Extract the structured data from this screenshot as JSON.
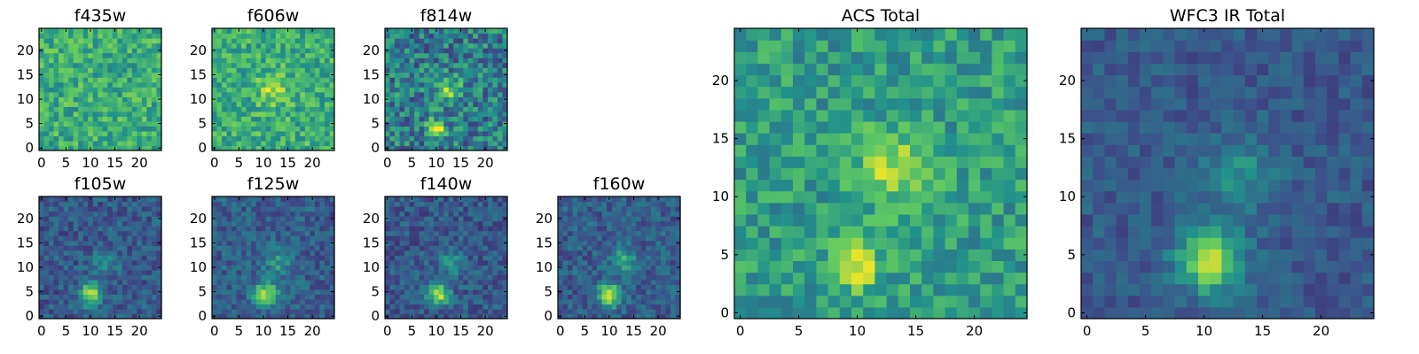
{
  "chart_data": {
    "type": "heatmap",
    "image_size": 25,
    "colormap": [
      "#440154",
      "#3b528b",
      "#21918c",
      "#5ec962",
      "#fde725"
    ],
    "panels": [
      {
        "id": "f435w",
        "title": "f435w",
        "xticks": [
          0,
          5,
          10,
          15,
          20
        ],
        "yticks": [
          0,
          5,
          10,
          15,
          20
        ],
        "xlim": [
          0,
          24
        ],
        "ylim": [
          0,
          24
        ],
        "sources": [],
        "noise": 0.1,
        "base": 0.62,
        "seed": 11
      },
      {
        "id": "f606w",
        "title": "f606w",
        "xticks": [
          0,
          5,
          10,
          15,
          20
        ],
        "yticks": [
          0,
          5,
          10,
          15,
          20
        ],
        "xlim": [
          0,
          24
        ],
        "ylim": [
          0,
          24
        ],
        "sources": [
          {
            "x": 12,
            "y": 12,
            "amp": 0.25,
            "sigma": 2.2
          }
        ],
        "noise": 0.1,
        "base": 0.62,
        "seed": 23
      },
      {
        "id": "f814w",
        "title": "f814w",
        "xticks": [
          0,
          5,
          10,
          15,
          20
        ],
        "yticks": [
          0,
          5,
          10,
          15,
          20
        ],
        "xlim": [
          0,
          24
        ],
        "ylim": [
          0,
          24
        ],
        "sources": [
          {
            "x": 12.5,
            "y": 12,
            "amp": 0.35,
            "sigma": 1.8
          },
          {
            "x": 10,
            "y": 4,
            "amp": 0.55,
            "sigma": 1.3
          }
        ],
        "noise": 0.13,
        "base": 0.42,
        "seed": 37
      },
      {
        "id": "f105w",
        "title": "f105w",
        "xticks": [
          0,
          5,
          10,
          15,
          20
        ],
        "yticks": [
          0,
          5,
          10,
          15,
          20
        ],
        "xlim": [
          0,
          24
        ],
        "ylim": [
          0,
          24
        ],
        "sources": [
          {
            "x": 10,
            "y": 4.5,
            "amp": 0.6,
            "sigma": 1.6
          },
          {
            "x": 13,
            "y": 11,
            "amp": 0.18,
            "sigma": 2.0
          }
        ],
        "noise": 0.07,
        "base": 0.28,
        "seed": 41
      },
      {
        "id": "f125w",
        "title": "f125w",
        "xticks": [
          0,
          5,
          10,
          15,
          20
        ],
        "yticks": [
          0,
          5,
          10,
          15,
          20
        ],
        "xlim": [
          0,
          24
        ],
        "ylim": [
          0,
          24
        ],
        "sources": [
          {
            "x": 10.5,
            "y": 4.5,
            "amp": 0.6,
            "sigma": 1.7
          },
          {
            "x": 13,
            "y": 11,
            "amp": 0.22,
            "sigma": 2.0
          }
        ],
        "noise": 0.07,
        "base": 0.3,
        "seed": 53
      },
      {
        "id": "f140w",
        "title": "f140w",
        "xticks": [
          0,
          5,
          10,
          15,
          20
        ],
        "yticks": [
          0,
          5,
          10,
          15,
          20
        ],
        "xlim": [
          0,
          24
        ],
        "ylim": [
          0,
          24
        ],
        "sources": [
          {
            "x": 10.5,
            "y": 4.5,
            "amp": 0.62,
            "sigma": 1.5
          },
          {
            "x": 13,
            "y": 11,
            "amp": 0.2,
            "sigma": 2.0
          }
        ],
        "noise": 0.07,
        "base": 0.28,
        "seed": 67
      },
      {
        "id": "f160w",
        "title": "f160w",
        "xticks": [
          0,
          5,
          10,
          15,
          20
        ],
        "yticks": [
          0,
          5,
          10,
          15,
          20
        ],
        "xlim": [
          0,
          24
        ],
        "ylim": [
          0,
          24
        ],
        "sources": [
          {
            "x": 10,
            "y": 4.5,
            "amp": 0.62,
            "sigma": 1.6
          },
          {
            "x": 13,
            "y": 11.5,
            "amp": 0.3,
            "sigma": 1.8
          }
        ],
        "noise": 0.07,
        "base": 0.3,
        "seed": 79
      },
      {
        "id": "acs_total",
        "title": "ACS Total",
        "xticks": [
          0,
          5,
          10,
          15,
          20
        ],
        "yticks": [
          0,
          5,
          10,
          15,
          20
        ],
        "xlim": [
          0,
          24
        ],
        "ylim": [
          0,
          24
        ],
        "sources": [
          {
            "x": 13,
            "y": 12.5,
            "amp": 0.32,
            "sigma": 2.2
          },
          {
            "x": 10,
            "y": 4,
            "amp": 0.35,
            "sigma": 1.5
          }
        ],
        "noise": 0.09,
        "base": 0.55,
        "seed": 97
      },
      {
        "id": "wfc3_ir_total",
        "title": "WFC3 IR Total",
        "xticks": [
          0,
          5,
          10,
          15,
          20
        ],
        "yticks": [
          0,
          5,
          10,
          15,
          20
        ],
        "xlim": [
          0,
          24
        ],
        "ylim": [
          0,
          24
        ],
        "sources": [
          {
            "x": 10.5,
            "y": 4.5,
            "amp": 0.62,
            "sigma": 1.9
          },
          {
            "x": 13,
            "y": 12,
            "amp": 0.22,
            "sigma": 2.2
          }
        ],
        "noise": 0.05,
        "base": 0.28,
        "seed": 131
      }
    ]
  }
}
